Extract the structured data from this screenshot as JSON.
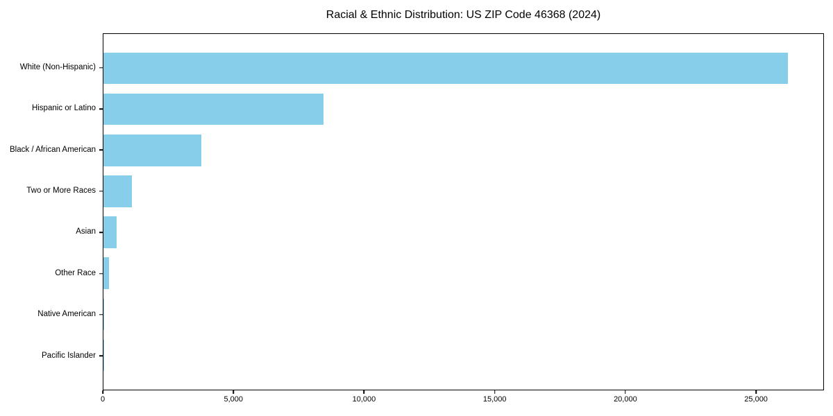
{
  "title": "Racial & Ethnic Distribution: US ZIP Code 46368 (2024)",
  "chart_data": {
    "type": "bar",
    "orientation": "horizontal",
    "title": "Racial & Ethnic Distribution: US ZIP Code 46368 (2024)",
    "categories": [
      "White (Non-Hispanic)",
      "Hispanic or Latino",
      "Black / African American",
      "Two or More Races",
      "Asian",
      "Other Race",
      "Native American",
      "Pacific Islander"
    ],
    "values": [
      26250,
      8450,
      3750,
      1090,
      505,
      215,
      25,
      10
    ],
    "bar_color": "#87CEEB",
    "xlabel": "",
    "ylabel": "",
    "xlim": [
      0,
      27600
    ],
    "xticks": [
      0,
      5000,
      10000,
      15000,
      20000,
      25000
    ],
    "xtick_labels": [
      "0",
      "5,000",
      "10,000",
      "15,000",
      "20,000",
      "25,000"
    ],
    "grid": false,
    "legend": null,
    "axis_color": "#000000",
    "background_color": "#ffffff"
  }
}
